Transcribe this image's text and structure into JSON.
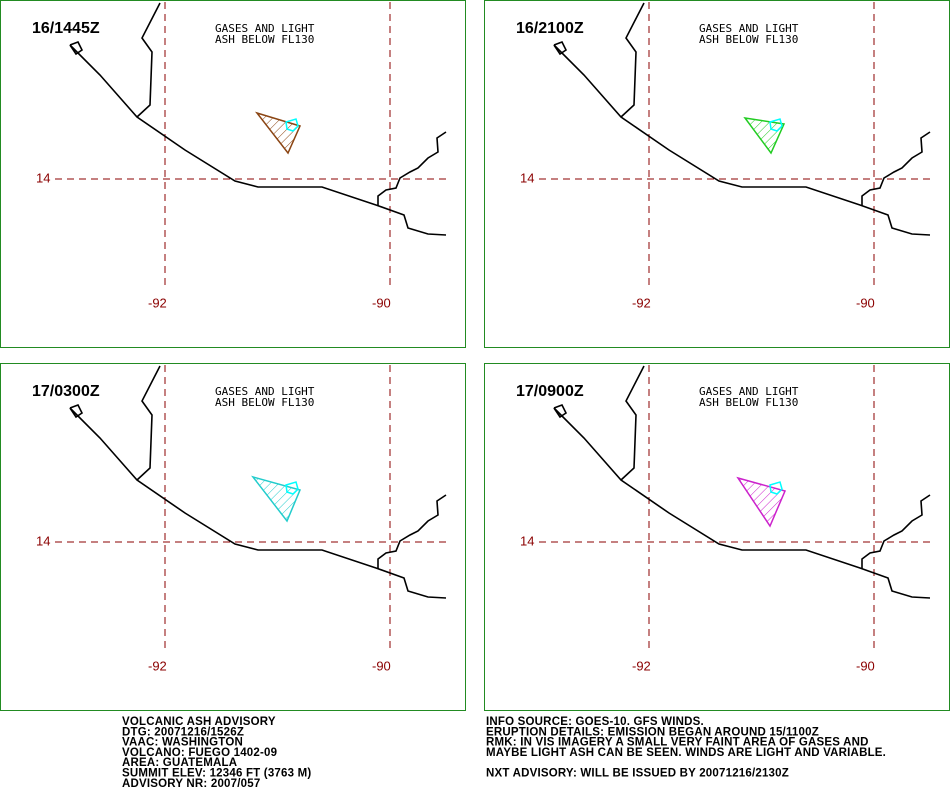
{
  "panels": [
    {
      "time": "16/1445Z",
      "annotation": [
        "GASES AND LIGHT",
        "ASH BELOW FL130"
      ],
      "lat_label": "14",
      "lon_labels": [
        "-92",
        "-90"
      ],
      "color": "#8b4513"
    },
    {
      "time": "16/2100Z",
      "annotation": [
        "GASES AND LIGHT",
        "ASH BELOW FL130"
      ],
      "lat_label": "14",
      "lon_labels": [
        "-92",
        "-90"
      ],
      "color": "#22cc22"
    },
    {
      "time": "17/0300Z",
      "annotation": [
        "GASES AND LIGHT",
        "ASH BELOW FL130"
      ],
      "lat_label": "14",
      "lon_labels": [
        "-92",
        "-90"
      ],
      "color": "#22cccc"
    },
    {
      "time": "17/0900Z",
      "annotation": [
        "GASES AND LIGHT",
        "ASH BELOW FL130"
      ],
      "lat_label": "14",
      "lon_labels": [
        "-92",
        "-90"
      ],
      "color": "#cc22cc"
    }
  ],
  "advisory_left": [
    "VOLCANIC ASH ADVISORY",
    "DTG: 20071216/1526Z",
    "VAAC: WASHINGTON",
    "VOLCANO: FUEGO 1402-09",
    "AREA: GUATEMALA",
    "SUMMIT ELEV: 12346 FT (3763 M)",
    "ADVISORY NR: 2007/057"
  ],
  "advisory_right": [
    "INFO SOURCE: GOES-10. GFS WINDS.",
    "ERUPTION DETAILS: EMISSION BEGAN AROUND 15/1100Z",
    "RMK: IN VIS IMAGERY A SMALL VERY FAINT AREA OF GASES AND",
    "MAYBE LIGHT ASH CAN BE SEEN. WINDS ARE LIGHT AND VARIABLE.",
    "NXT ADVISORY: WILL BE ISSUED BY 20071216/2130Z"
  ]
}
